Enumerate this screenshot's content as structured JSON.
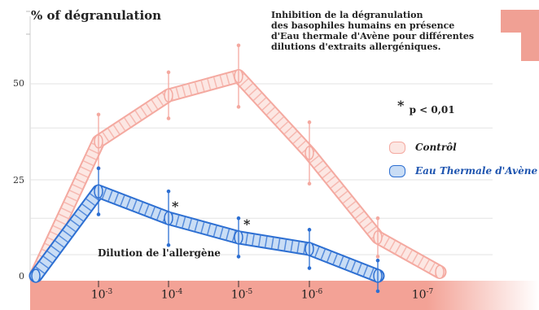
{
  "chart_data": {
    "type": "line",
    "ylabel": "% of dégranulation",
    "description": [
      "Inhibition de la dégranulation",
      "des basophiles humains en présence",
      "d'Eau thermale d'Avène pour différentes",
      "dilutions d'extraits allergéniques."
    ],
    "xlabel": "Dilution de l'allergène",
    "x_ticks": [
      {
        "base": "10",
        "exp": "-3"
      },
      {
        "base": "10",
        "exp": "-4"
      },
      {
        "base": "10",
        "exp": "-5"
      },
      {
        "base": "10",
        "exp": "-6"
      },
      {
        "base": "10",
        "exp": "-7"
      }
    ],
    "y_ticks": [
      "50",
      "25",
      "0"
    ],
    "ylim": [
      0,
      65
    ],
    "grid": true,
    "significance_note": {
      "symbol": "*",
      "text": "p < 0,01"
    },
    "significance_markers": [
      "*",
      "*"
    ],
    "series": [
      {
        "name": "Contrôl",
        "color": "#f4a9a0",
        "fill": "#fce7e3",
        "x": [
          0,
          1,
          2,
          3,
          4,
          5,
          6
        ],
        "y": [
          0,
          35,
          47,
          52,
          32,
          10,
          1
        ],
        "error": [
          null,
          7,
          6,
          8,
          8,
          5,
          null
        ]
      },
      {
        "name": "Eau Thermale d'Avène",
        "color": "#2d6fd2",
        "fill": "#c9ddf5",
        "x": [
          0,
          1,
          2,
          3,
          4,
          5
        ],
        "y": [
          0,
          22,
          15,
          10,
          7,
          0
        ],
        "error": [
          null,
          6,
          7,
          5,
          5,
          4
        ]
      }
    ],
    "legend": {
      "position": "right"
    },
    "accent_color": "#f0a094"
  }
}
